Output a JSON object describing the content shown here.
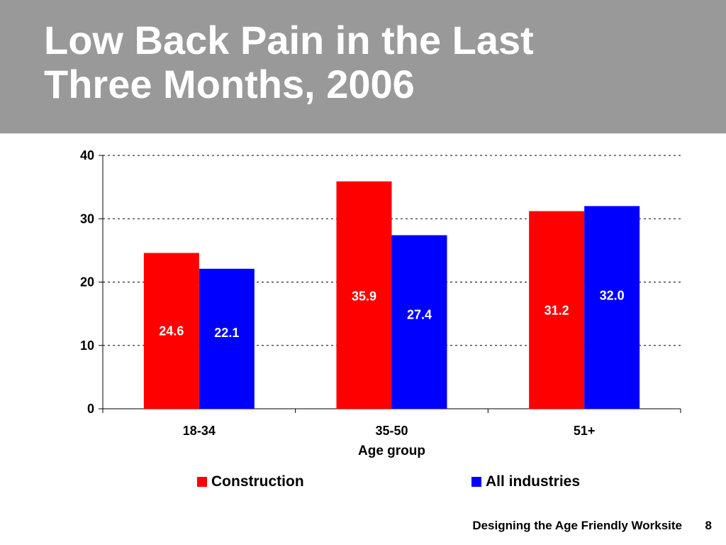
{
  "slide": {
    "title": "Low Back Pain in the Last\nThree Months, 2006",
    "footer_text": "Designing the Age Friendly Worksite",
    "page_number": "8"
  },
  "chart_data": {
    "type": "bar",
    "title": "",
    "xlabel": "Age group",
    "ylabel": "",
    "categories": [
      "18-34",
      "35-50",
      "51+"
    ],
    "ylim": [
      0,
      40
    ],
    "yticks": [
      0,
      10,
      20,
      30,
      40
    ],
    "grid": true,
    "legend_position": "bottom",
    "series": [
      {
        "name": "Construction",
        "color": "#ff0000",
        "values": [
          24.6,
          35.9,
          31.2
        ],
        "labels": [
          "24.6",
          "35.9",
          "31.2"
        ]
      },
      {
        "name": "All industries",
        "color": "#0000ff",
        "values": [
          22.1,
          27.4,
          32.0
        ],
        "labels": [
          "22.1",
          "27.4",
          "32.0"
        ]
      }
    ]
  }
}
